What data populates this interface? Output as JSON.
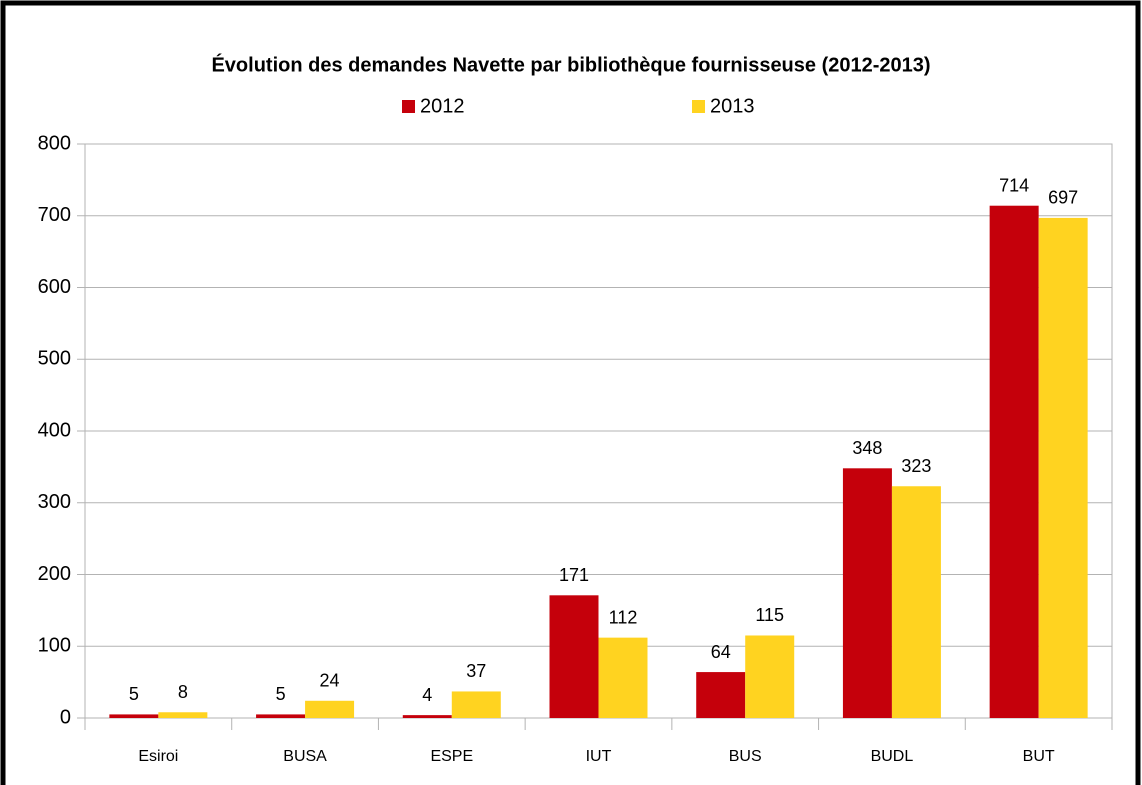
{
  "chart_data": {
    "type": "bar",
    "title": "Évolution des demandes Navette par bibliothèque fournisseuse (2012-2013)",
    "categories": [
      "Esiroi",
      "BUSA",
      "ESPE",
      "IUT",
      "BUS",
      "BUDL",
      "BUT"
    ],
    "series": [
      {
        "name": "2012",
        "color": "#c5000b",
        "values": [
          5,
          5,
          4,
          171,
          64,
          348,
          714
        ]
      },
      {
        "name": "2013",
        "color": "#ffd320",
        "values": [
          8,
          24,
          37,
          112,
          115,
          323,
          697
        ]
      }
    ],
    "ylim": [
      0,
      800
    ],
    "yticks": [
      0,
      100,
      200,
      300,
      400,
      500,
      600,
      700,
      800
    ],
    "grid": true,
    "legend": "top",
    "data_labels": true
  }
}
